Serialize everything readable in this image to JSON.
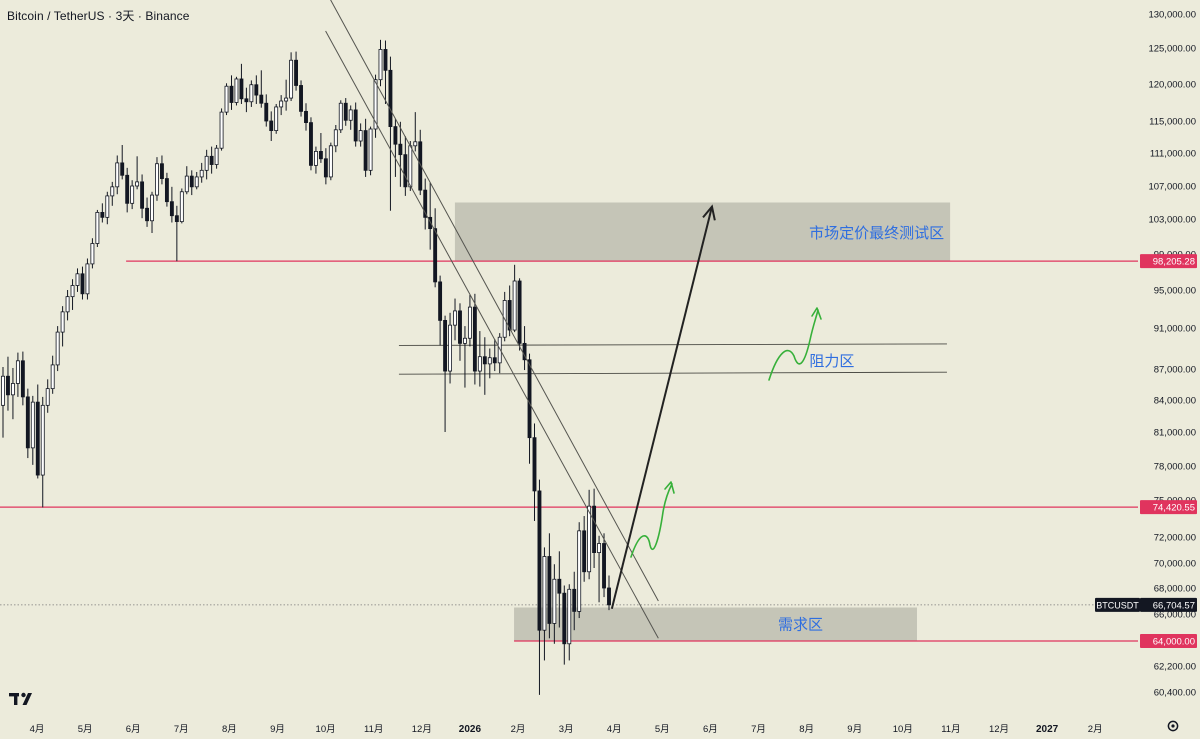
{
  "header": {
    "title": "Bitcoin / TetherUS · 3天 · Binance"
  },
  "colors": {
    "background": "#ecebdb",
    "candle_up": "#ffffff",
    "candle_down": "#131722",
    "candle_outline": "#131722",
    "level_line": "#e0345e",
    "zone_fill": "#b8b8ab",
    "annotation_text": "#2f6ee0",
    "green_path": "#37b03a",
    "arrow": "#222222"
  },
  "chart_data": {
    "type": "candlestick",
    "symbol": "BTCUSDT",
    "exchange": "Binance",
    "timeframe": "3天",
    "y_axis": {
      "side": "right",
      "range": [
        59000,
        130500
      ],
      "ticks": [
        "60,400.00",
        "62,200.00",
        "64,000.00",
        "66,000.00",
        "68,000.00",
        "70,000.00",
        "72,000.00",
        "75,000.00",
        "78,000.00",
        "81,000.00",
        "84,000.00",
        "87,000.00",
        "91,000.00",
        "95,000.00",
        "99,000.00",
        "103,000.00",
        "107,000.00",
        "111,000.00",
        "115,000.00",
        "120,000.00",
        "125,000.00",
        "130,000.00"
      ]
    },
    "x_axis": {
      "labels": [
        "4月",
        "5月",
        "6月",
        "7月",
        "8月",
        "9月",
        "10月",
        "11月",
        "12月",
        "2026",
        "2月",
        "3月",
        "4月",
        "5月",
        "6月",
        "7月",
        "8月",
        "9月",
        "10月",
        "11月",
        "12月",
        "2027",
        "2月"
      ],
      "bold_labels": [
        "2026",
        "2027"
      ]
    },
    "price_labels": [
      {
        "text": "98,205.28",
        "value": 98205.28,
        "style": "level"
      },
      {
        "text": "74,420.55",
        "value": 74420.55,
        "style": "level"
      },
      {
        "text": "BTCUSDT",
        "value": 66704.57,
        "style": "symbol"
      },
      {
        "text": "66,704.57",
        "value": 66704.57,
        "style": "price"
      },
      {
        "text": "64,000.00",
        "value": 64000,
        "style": "level"
      }
    ],
    "horizontal_levels": [
      {
        "value": 98205.28,
        "from": "2025-05-27"
      },
      {
        "value": 74420.55,
        "from": "2025-03-01"
      },
      {
        "value": 64000,
        "from": "2026-01-29"
      }
    ],
    "zones": [
      {
        "label": "市场定价最终测试区",
        "low": 98205,
        "high": 105000,
        "from": "2025-12-22",
        "to": "2026-10-31"
      },
      {
        "label": "需求区",
        "low": 64000,
        "high": 66500,
        "from": "2026-01-29",
        "to": "2026-10-10"
      }
    ],
    "resistance_band": {
      "label": "阻力区",
      "low": 86500,
      "high": 89300,
      "from": "2025-11-17",
      "to": "2026-10-29"
    },
    "trendlines": [
      {
        "from": [
          "2025-10-02",
          133000
        ],
        "to": [
          "2026-04-29",
          67000
        ]
      },
      {
        "from": [
          "2025-10-01",
          127500
        ],
        "to": [
          "2026-04-29",
          64200
        ]
      }
    ],
    "projection_arrow": {
      "from": [
        "2026-03-30",
        66400
      ],
      "to": [
        "2026-06-02",
        104500
      ]
    },
    "candles": [
      [
        83500,
        87200,
        80500,
        86300
      ],
      [
        86300,
        88200,
        83000,
        84500
      ],
      [
        84500,
        87100,
        82200,
        85600
      ],
      [
        85600,
        88600,
        84300,
        87800
      ],
      [
        87800,
        88700,
        83500,
        84300
      ],
      [
        84300,
        85100,
        78700,
        79600
      ],
      [
        79600,
        84400,
        78100,
        83800
      ],
      [
        83800,
        85500,
        76900,
        77200
      ],
      [
        77200,
        84300,
        74400,
        83500
      ],
      [
        83500,
        86000,
        82800,
        85100
      ],
      [
        85100,
        88300,
        84600,
        87400
      ],
      [
        87400,
        91200,
        86800,
        90600
      ],
      [
        90600,
        93300,
        89200,
        92700
      ],
      [
        92700,
        95000,
        91800,
        94300
      ],
      [
        94300,
        96200,
        92900,
        95500
      ],
      [
        95500,
        97400,
        94800,
        96800
      ],
      [
        96800,
        97600,
        94000,
        94600
      ],
      [
        94600,
        98500,
        94000,
        97900
      ],
      [
        97900,
        100800,
        97400,
        100200
      ],
      [
        100200,
        104100,
        99800,
        103800
      ],
      [
        103800,
        104900,
        102600,
        103200
      ],
      [
        103200,
        106300,
        102400,
        105800
      ],
      [
        105800,
        107500,
        104600,
        106900
      ],
      [
        106900,
        110700,
        106000,
        109800
      ],
      [
        109800,
        112000,
        107800,
        108300
      ],
      [
        108300,
        109200,
        103800,
        104900
      ],
      [
        104900,
        107700,
        104200,
        107000
      ],
      [
        107000,
        110600,
        106600,
        107500
      ],
      [
        107500,
        108400,
        103100,
        104300
      ],
      [
        104300,
        105600,
        102100,
        102800
      ],
      [
        102800,
        106300,
        101400,
        105900
      ],
      [
        105900,
        110500,
        105200,
        109700
      ],
      [
        109700,
        110700,
        107200,
        107900
      ],
      [
        107900,
        108600,
        104500,
        105100
      ],
      [
        105100,
        106900,
        102600,
        103400
      ],
      [
        103400,
        104600,
        98200,
        102700
      ],
      [
        102700,
        106700,
        102500,
        106300
      ],
      [
        106300,
        109400,
        106000,
        108200
      ],
      [
        108200,
        108900,
        105900,
        106900
      ],
      [
        106900,
        108700,
        106600,
        108100
      ],
      [
        108100,
        109800,
        107400,
        108900
      ],
      [
        108900,
        111400,
        107800,
        110600
      ],
      [
        110600,
        111800,
        108500,
        109600
      ],
      [
        109600,
        112000,
        109100,
        111600
      ],
      [
        111600,
        116700,
        111300,
        116200
      ],
      [
        116200,
        120100,
        115800,
        119700
      ],
      [
        119700,
        121200,
        116500,
        117500
      ],
      [
        117500,
        121000,
        117100,
        120700
      ],
      [
        120700,
        122800,
        117300,
        118000
      ],
      [
        118000,
        119500,
        116200,
        117600
      ],
      [
        117600,
        120500,
        116900,
        119900
      ],
      [
        119900,
        121200,
        117300,
        118500
      ],
      [
        118500,
        121900,
        116800,
        117400
      ],
      [
        117400,
        118600,
        114300,
        115000
      ],
      [
        115000,
        116300,
        112500,
        113800
      ],
      [
        113800,
        117300,
        113400,
        116900
      ],
      [
        116900,
        118500,
        115800,
        117700
      ],
      [
        117700,
        120600,
        116400,
        118100
      ],
      [
        118100,
        124400,
        117700,
        123300
      ],
      [
        123300,
        124500,
        119100,
        119800
      ],
      [
        119800,
        120500,
        115600,
        116300
      ],
      [
        116300,
        117400,
        113800,
        114800
      ],
      [
        114800,
        115500,
        108900,
        109500
      ],
      [
        109500,
        111800,
        108500,
        111200
      ],
      [
        111200,
        113500,
        109800,
        110300
      ],
      [
        110300,
        111600,
        107200,
        108100
      ],
      [
        108100,
        112300,
        107700,
        111900
      ],
      [
        111900,
        114500,
        111100,
        113900
      ],
      [
        113900,
        117800,
        113500,
        117400
      ],
      [
        117400,
        118100,
        114400,
        115100
      ],
      [
        115100,
        117100,
        113900,
        116500
      ],
      [
        116500,
        117500,
        111800,
        112500
      ],
      [
        112500,
        114700,
        111800,
        113800
      ],
      [
        113800,
        115300,
        108100,
        108900
      ],
      [
        108900,
        114300,
        108300,
        114000
      ],
      [
        114000,
        121300,
        112900,
        120600
      ],
      [
        120600,
        126200,
        119700,
        124800
      ],
      [
        124800,
        126100,
        117300,
        121900
      ],
      [
        121900,
        123800,
        104000,
        114300
      ],
      [
        114300,
        115300,
        108100,
        112100
      ],
      [
        112100,
        114900,
        106900,
        110800
      ],
      [
        110800,
        113100,
        105800,
        106900
      ],
      [
        106900,
        112500,
        106400,
        111900
      ],
      [
        111900,
        116200,
        111200,
        112400
      ],
      [
        112400,
        113900,
        105900,
        106500
      ],
      [
        106500,
        107900,
        101800,
        103200
      ],
      [
        103200,
        107400,
        99500,
        101900
      ],
      [
        101900,
        104300,
        95300,
        95900
      ],
      [
        95900,
        96600,
        89300,
        91800
      ],
      [
        91800,
        92300,
        81000,
        86800
      ],
      [
        86800,
        92600,
        85600,
        91300
      ],
      [
        91300,
        94100,
        89800,
        92800
      ],
      [
        92800,
        93600,
        87800,
        89500
      ],
      [
        89500,
        91200,
        85200,
        90000
      ],
      [
        90000,
        94500,
        89200,
        93200
      ],
      [
        93200,
        94600,
        85500,
        86800
      ],
      [
        86800,
        90700,
        85300,
        88200
      ],
      [
        88200,
        90100,
        84500,
        87500
      ],
      [
        87500,
        89000,
        86100,
        88100
      ],
      [
        88100,
        89900,
        86800,
        87600
      ],
      [
        87600,
        90500,
        86600,
        90100
      ],
      [
        90100,
        94800,
        89700,
        93900
      ],
      [
        93900,
        95500,
        90200,
        90800
      ],
      [
        90800,
        97800,
        90600,
        96000
      ],
      [
        96000,
        96300,
        88800,
        89500
      ],
      [
        89500,
        91200,
        86900,
        87900
      ],
      [
        87900,
        88500,
        78200,
        80500
      ],
      [
        80500,
        81800,
        73300,
        75800
      ],
      [
        75800,
        76800,
        60200,
        64800
      ],
      [
        64800,
        71200,
        62600,
        70500
      ],
      [
        70500,
        72300,
        64200,
        65300
      ],
      [
        65300,
        69900,
        63800,
        68700
      ],
      [
        68700,
        70900,
        65000,
        67600
      ],
      [
        67600,
        68200,
        62300,
        63800
      ],
      [
        63800,
        68300,
        62600,
        67900
      ],
      [
        67900,
        69300,
        64800,
        66200
      ],
      [
        66200,
        73200,
        65700,
        72500
      ],
      [
        72500,
        73700,
        68500,
        69300
      ],
      [
        69300,
        75900,
        68700,
        74500
      ],
      [
        74500,
        76000,
        69600,
        70800
      ],
      [
        70800,
        72100,
        66900,
        71500
      ],
      [
        71500,
        72300,
        67300,
        68000
      ],
      [
        68000,
        69000,
        66300,
        66704.57
      ]
    ]
  },
  "annotations": {
    "top_zone_label": "市场定价最终测试区",
    "resistance_label": "阻力区",
    "demand_label": "需求区"
  }
}
